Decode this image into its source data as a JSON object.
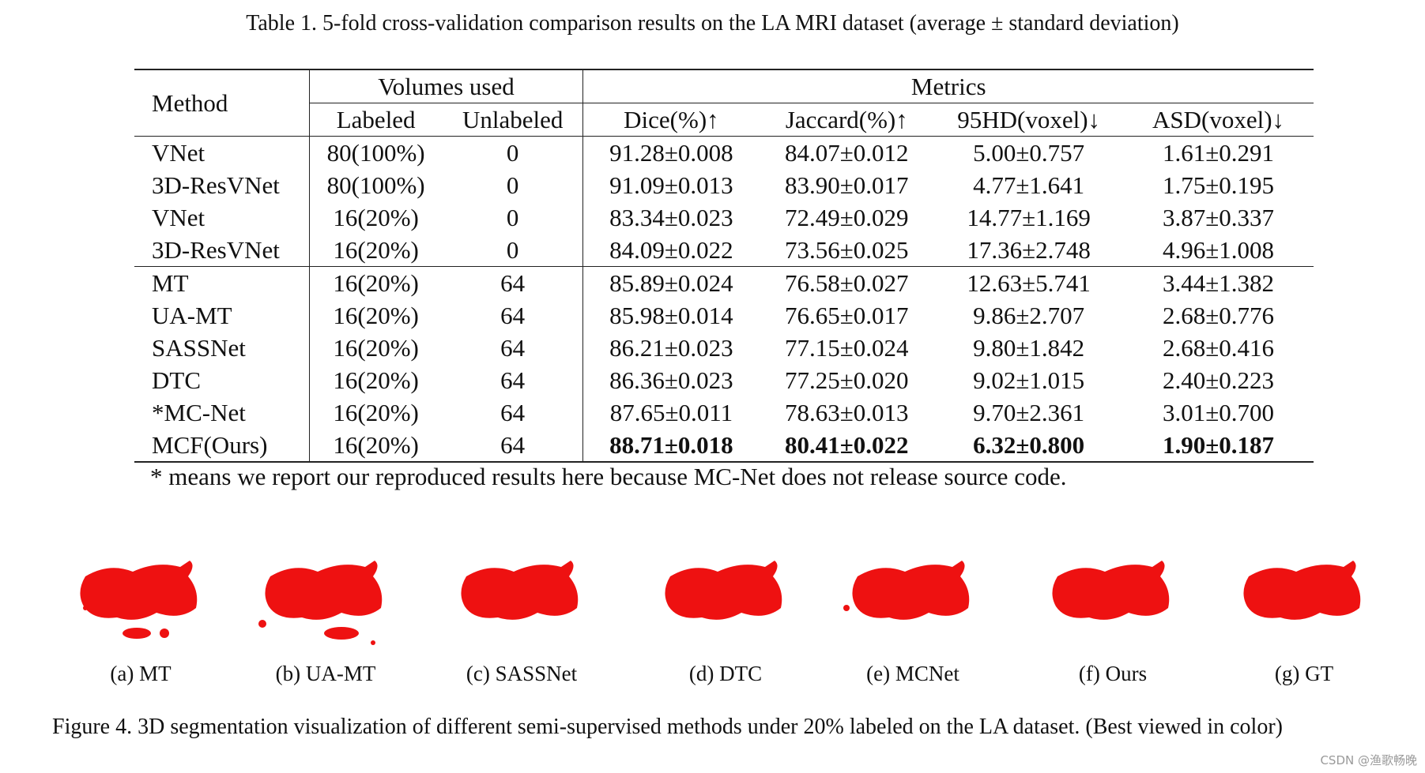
{
  "table": {
    "caption": "Table 1. 5-fold cross-validation comparison results on the LA MRI dataset (average ± standard deviation)",
    "headers": {
      "method": "Method",
      "volumes_used": "Volumes used",
      "metrics": "Metrics",
      "labeled": "Labeled",
      "unlabeled": "Unlabeled",
      "dice": "Dice(%)↑",
      "jaccard": "Jaccard(%)↑",
      "hd95": "95HD(voxel)↓",
      "asd": "ASD(voxel)↓"
    },
    "rows": [
      [
        "VNet",
        "80(100%)",
        "0",
        "91.28±0.008",
        "84.07±0.012",
        "5.00±0.757",
        "1.61±0.291"
      ],
      [
        "3D-ResVNet",
        "80(100%)",
        "0",
        "91.09±0.013",
        "83.90±0.017",
        "4.77±1.641",
        "1.75±0.195"
      ],
      [
        "VNet",
        "16(20%)",
        "0",
        "83.34±0.023",
        "72.49±0.029",
        "14.77±1.169",
        "3.87±0.337"
      ],
      [
        "3D-ResVNet",
        "16(20%)",
        "0",
        "84.09±0.022",
        "73.56±0.025",
        "17.36±2.748",
        "4.96±1.008"
      ],
      [
        "MT",
        "16(20%)",
        "64",
        "85.89±0.024",
        "76.58±0.027",
        "12.63±5.741",
        "3.44±1.382"
      ],
      [
        "UA-MT",
        "16(20%)",
        "64",
        "85.98±0.014",
        "76.65±0.017",
        "9.86±2.707",
        "2.68±0.776"
      ],
      [
        "SASSNet",
        "16(20%)",
        "64",
        "86.21±0.023",
        "77.15±0.024",
        "9.80±1.842",
        "2.68±0.416"
      ],
      [
        "DTC",
        "16(20%)",
        "64",
        "86.36±0.023",
        "77.25±0.020",
        "9.02±1.015",
        "2.40±0.223"
      ],
      [
        "*MC-Net",
        "16(20%)",
        "64",
        "87.65±0.011",
        "78.63±0.013",
        "9.70±2.361",
        "3.01±0.700"
      ],
      [
        "MCF(Ours)",
        "16(20%)",
        "64",
        "88.71±0.018",
        "80.41±0.022",
        "6.32±0.800",
        "1.90±0.187"
      ]
    ],
    "footnote": "* means we report our reproduced results here because MC-Net does not release source code."
  },
  "figure": {
    "segmentation_color": "#ee1111",
    "panels": [
      {
        "label": "(a) MT",
        "icon": "left-atrium-segmentation-icon"
      },
      {
        "label": "(b) UA-MT",
        "icon": "left-atrium-segmentation-icon"
      },
      {
        "label": "(c) SASSNet",
        "icon": "left-atrium-segmentation-icon"
      },
      {
        "label": "(d) DTC",
        "icon": "left-atrium-segmentation-icon"
      },
      {
        "label": "(e) MCNet",
        "icon": "left-atrium-segmentation-icon"
      },
      {
        "label": "(f) Ours",
        "icon": "left-atrium-segmentation-icon"
      },
      {
        "label": "(g) GT",
        "icon": "left-atrium-segmentation-icon"
      }
    ],
    "caption": "Figure 4. 3D segmentation visualization of different semi-supervised methods under 20% labeled on the LA dataset. (Best viewed in color)"
  },
  "watermark": "CSDN @渔歌畅晚"
}
